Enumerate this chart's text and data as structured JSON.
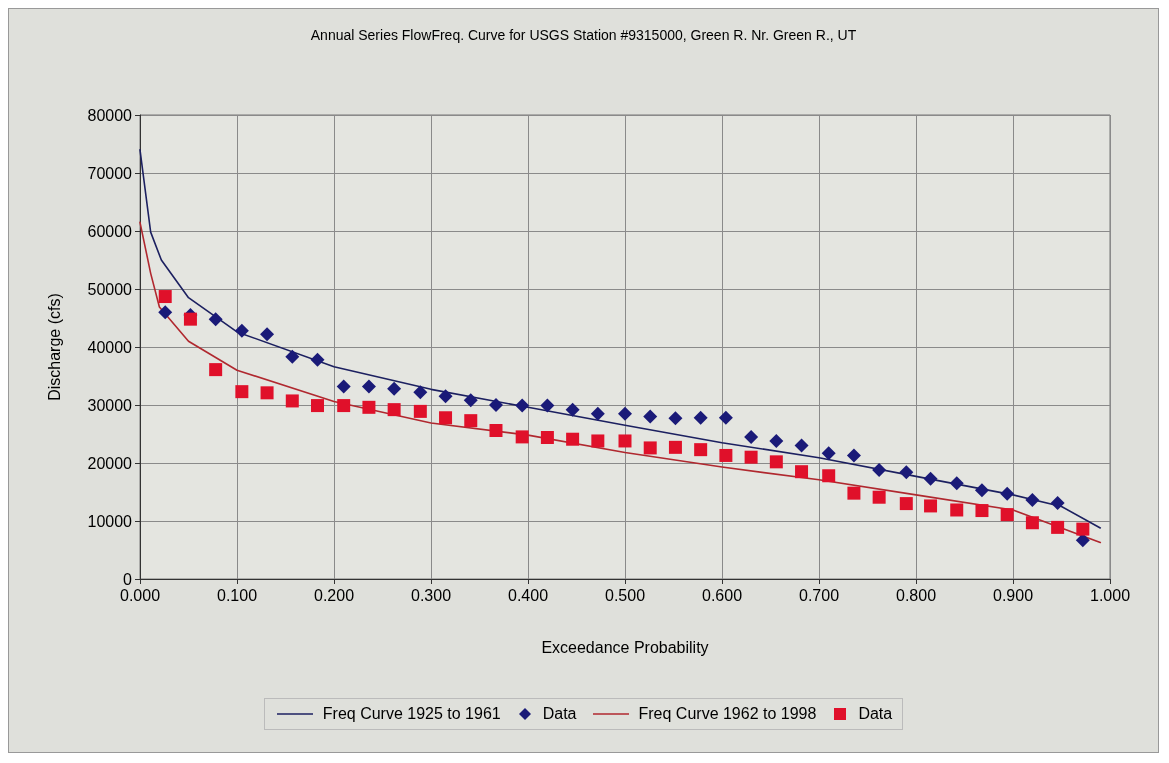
{
  "chart_data": {
    "type": "scatter",
    "title": "Annual Series FlowFreq. Curve for USGS Station #9315000, Green R. Nr. Green R., UT",
    "xlabel": "Exceedance Probability",
    "ylabel": "Discharge (cfs)",
    "xlim": [
      0,
      1
    ],
    "ylim": [
      0,
      80000
    ],
    "xticks": [
      {
        "value": 0,
        "label": "0.000"
      },
      {
        "value": 0.1,
        "label": "0.100"
      },
      {
        "value": 0.2,
        "label": "0.200"
      },
      {
        "value": 0.3,
        "label": "0.300"
      },
      {
        "value": 0.4,
        "label": "0.400"
      },
      {
        "value": 0.5,
        "label": "0.500"
      },
      {
        "value": 0.6,
        "label": "0.600"
      },
      {
        "value": 0.7,
        "label": "0.700"
      },
      {
        "value": 0.8,
        "label": "0.800"
      },
      {
        "value": 0.9,
        "label": "0.900"
      },
      {
        "value": 1,
        "label": "1.000"
      }
    ],
    "yticks": [
      0,
      10000,
      20000,
      30000,
      40000,
      50000,
      60000,
      70000,
      80000
    ],
    "grid": true,
    "legend": "bottom",
    "series": [
      {
        "name": "Freq Curve 1925 to 1961",
        "type": "line",
        "marker": "none",
        "line_style": "solid",
        "color": "#1c2060",
        "x": [
          0,
          0.011,
          0.022,
          0.05,
          0.1,
          0.2,
          0.3,
          0.4,
          0.5,
          0.6,
          0.7,
          0.8,
          0.9,
          0.95,
          0.99
        ],
        "values": [
          74000,
          59800,
          55000,
          48500,
          42600,
          36600,
          32700,
          29600,
          26500,
          23500,
          20900,
          17700,
          14500,
          12500,
          8800
        ]
      },
      {
        "name": "Data",
        "marker": "diamond",
        "color": "#1a1a78",
        "x": [
          0.026,
          0.052,
          0.078,
          0.105,
          0.131,
          0.157,
          0.183,
          0.21,
          0.236,
          0.262,
          0.289,
          0.315,
          0.341,
          0.367,
          0.394,
          0.42,
          0.446,
          0.472,
          0.5,
          0.526,
          0.552,
          0.578,
          0.604,
          0.63,
          0.656,
          0.682,
          0.71,
          0.736,
          0.762,
          0.79,
          0.815,
          0.842,
          0.868,
          0.894,
          0.92,
          0.946,
          0.972
        ],
        "values": [
          46000,
          45500,
          44800,
          42800,
          42200,
          38300,
          37800,
          33200,
          33200,
          32800,
          32200,
          31500,
          30800,
          30000,
          29900,
          29900,
          29200,
          28500,
          28500,
          28000,
          27700,
          27800,
          27800,
          24500,
          23800,
          23000,
          21700,
          21300,
          18800,
          18400,
          17300,
          16500,
          15300,
          14700,
          13600,
          13100,
          6700
        ]
      },
      {
        "name": "Freq Curve 1962 to 1998",
        "type": "line",
        "marker": "none",
        "line_style": "solid",
        "color": "#b0282f",
        "x": [
          0,
          0.011,
          0.02,
          0.05,
          0.1,
          0.2,
          0.3,
          0.4,
          0.5,
          0.6,
          0.7,
          0.8,
          0.9,
          0.99
        ],
        "values": [
          61500,
          52700,
          46900,
          41000,
          36000,
          30600,
          26900,
          24800,
          21800,
          19300,
          17100,
          14500,
          11900,
          6300
        ]
      },
      {
        "name": "Data",
        "marker": "square",
        "color": "#e0102a",
        "x": [
          0.026,
          0.052,
          0.078,
          0.105,
          0.131,
          0.157,
          0.183,
          0.21,
          0.236,
          0.262,
          0.289,
          0.315,
          0.341,
          0.367,
          0.394,
          0.42,
          0.446,
          0.472,
          0.5,
          0.526,
          0.552,
          0.578,
          0.604,
          0.63,
          0.656,
          0.682,
          0.71,
          0.736,
          0.762,
          0.79,
          0.815,
          0.842,
          0.868,
          0.894,
          0.92,
          0.946,
          0.972
        ],
        "values": [
          48700,
          44800,
          36100,
          32300,
          32100,
          30700,
          29900,
          29900,
          29600,
          29200,
          28900,
          27800,
          27300,
          25600,
          24500,
          24400,
          24100,
          23800,
          23800,
          22600,
          22700,
          22300,
          21300,
          21000,
          20200,
          18500,
          17800,
          14800,
          14100,
          13000,
          12600,
          11900,
          11800,
          11100,
          9700,
          8900,
          8600
        ]
      }
    ]
  }
}
